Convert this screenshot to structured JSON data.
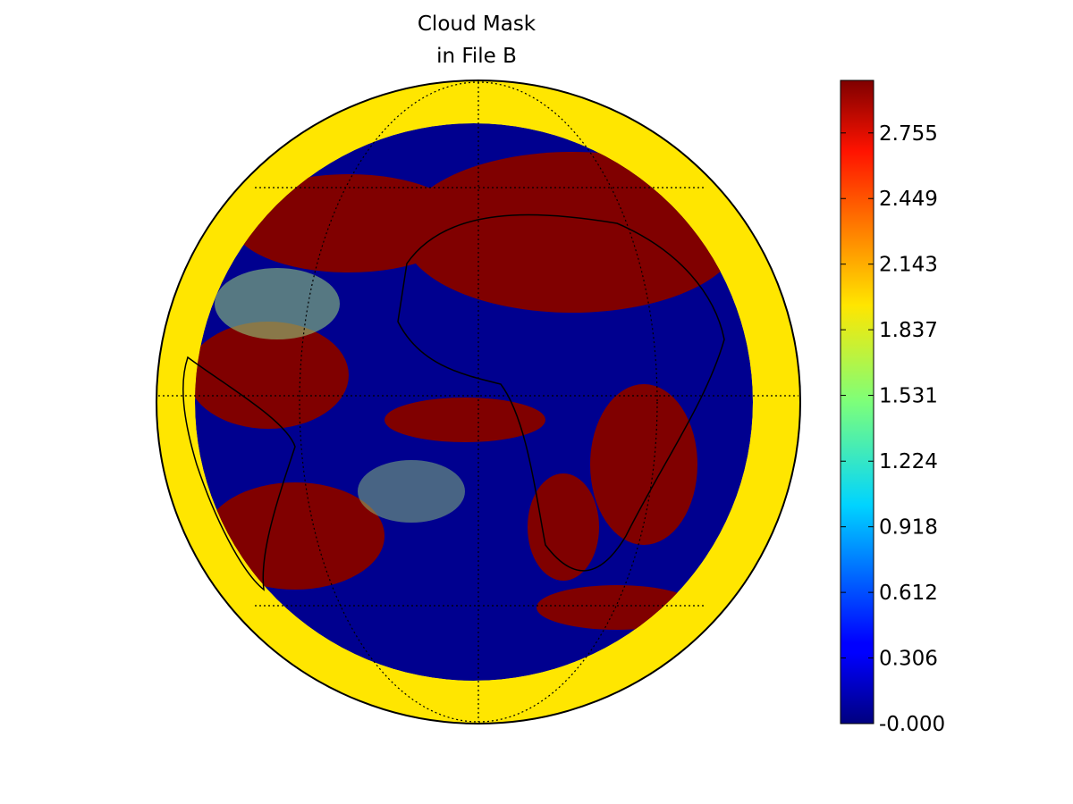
{
  "chart_data": {
    "type": "map",
    "title": [
      "Cloud Mask",
      "in File B"
    ],
    "colorbar": {
      "clim": [
        0,
        3
      ],
      "ticks": [
        {
          "value": 0,
          "label": "-0.000"
        },
        {
          "value": 0.306,
          "label": "0.306"
        },
        {
          "value": 0.612,
          "label": "0.612"
        },
        {
          "value": 0.918,
          "label": "0.918"
        },
        {
          "value": 1.224,
          "label": "1.224"
        },
        {
          "value": 1.531,
          "label": "1.531"
        },
        {
          "value": 1.837,
          "label": "1.837"
        },
        {
          "value": 2.143,
          "label": "2.143"
        },
        {
          "value": 2.449,
          "label": "2.449"
        },
        {
          "value": 2.755,
          "label": "2.755"
        }
      ]
    }
  }
}
